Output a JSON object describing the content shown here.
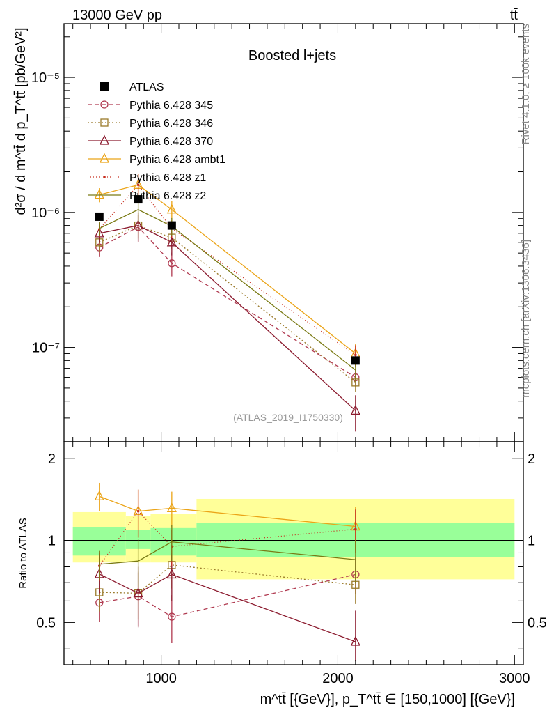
{
  "header": {
    "left": "13000 GeV pp",
    "right": "tt̄"
  },
  "side_labels": {
    "rivet": "Rivet 4.1.0, ≥ 100k events",
    "mcplots": "mcplots.cern.ch [arXiv:1306.3436]"
  },
  "chart_data": {
    "type": "scatter",
    "title": "Boosted l+jets",
    "watermark": "(ATLAS_2019_I1750330)",
    "ylabel": "d²σ / d m^tt̄ d p_T^tt̄ [pb/GeV²]",
    "xlabel": "m^tt̄ [{GeV}], p_T^tt̄ ∈ [150,1000] [{GeV}]",
    "ratio_ylabel": "Ratio to ATLAS",
    "xlim": [
      450,
      3050
    ],
    "ylim": [
      2e-08,
      2.5e-05
    ],
    "ratio_ylim": [
      0.35,
      2.3
    ],
    "x_ticks": [
      1000,
      2000,
      3000
    ],
    "x_tick_labels": [
      "1000",
      "2000",
      "3000"
    ],
    "y_ticks": [
      1e-07,
      1e-06,
      1e-05
    ],
    "y_tick_labels": [
      "10⁻⁷",
      "10⁻⁶",
      "10⁻⁵"
    ],
    "ratio_ticks": [
      0.5,
      1,
      2
    ],
    "ratio_tick_labels": [
      "0.5",
      "1",
      "2"
    ],
    "x": [
      650,
      870,
      1060,
      2100
    ],
    "bin_edges": [
      [
        500,
        800
      ],
      [
        800,
        940
      ],
      [
        940,
        1200
      ],
      [
        1200,
        3000
      ]
    ],
    "data": {
      "name": "ATLAS",
      "values": [
        9.3e-07,
        1.25e-06,
        8e-07,
        8e-08
      ],
      "band_inner": [
        [
          0.88,
          1.12
        ],
        [
          0.93,
          1.09
        ],
        [
          0.88,
          1.11
        ],
        [
          0.87,
          1.16
        ]
      ],
      "band_outer": [
        [
          0.83,
          1.27
        ],
        [
          0.83,
          1.23
        ],
        [
          0.83,
          1.25
        ],
        [
          0.72,
          1.42
        ]
      ]
    },
    "series": [
      {
        "name": "Pythia 6.428 345",
        "color": "#b03a50",
        "dash": "6,4",
        "marker": "circle",
        "values": [
          5.5e-07,
          7.8e-07,
          4.2e-07,
          6e-08
        ],
        "rel_err": [
          0.15,
          0.22,
          0.2,
          0.15
        ]
      },
      {
        "name": "Pythia 6.428 346",
        "color": "#9a7a2a",
        "dash": "2,3",
        "marker": "square",
        "values": [
          6e-07,
          8e-07,
          6.5e-07,
          5.5e-08
        ],
        "rel_err": [
          0.15,
          0.2,
          0.18,
          0.15
        ]
      },
      {
        "name": "Pythia 6.428 370",
        "color": "#8b1a2e",
        "dash": "",
        "marker": "triangle",
        "values": [
          7e-07,
          8e-07,
          6e-07,
          3.4e-08
        ],
        "rel_err": [
          0.15,
          0.25,
          0.2,
          0.3
        ]
      },
      {
        "name": "Pythia 6.428 ambt1",
        "color": "#eba417",
        "dash": "",
        "marker": "triangle",
        "values": [
          1.35e-06,
          1.6e-06,
          1.05e-06,
          9e-08
        ],
        "rel_err": [
          0.12,
          0.2,
          0.15,
          0.18
        ]
      },
      {
        "name": "Pythia 6.428 z1",
        "color": "#c72d1e",
        "dash": "1,3",
        "marker": "dot",
        "values": [
          7.5e-07,
          1.6e-06,
          7.6e-07,
          8.8e-08
        ],
        "rel_err": [
          0.12,
          0.2,
          0.15,
          0.18
        ]
      },
      {
        "name": "Pythia 6.428 z2",
        "color": "#7a7a14",
        "dash": "",
        "marker": "none",
        "values": [
          7.6e-07,
          1.05e-06,
          7.9e-07,
          6.8e-08
        ],
        "rel_err": [
          0.12,
          0.2,
          0.15,
          0.18
        ]
      }
    ]
  }
}
